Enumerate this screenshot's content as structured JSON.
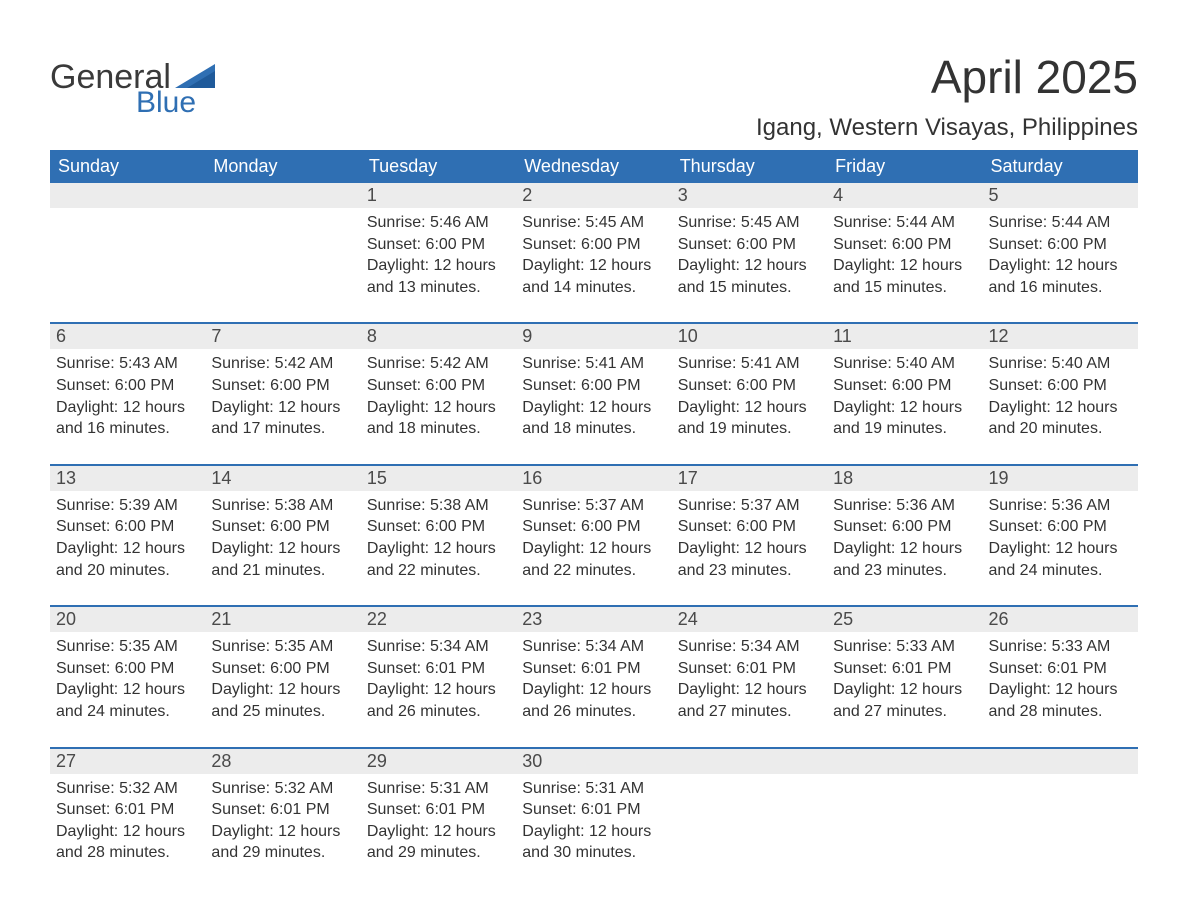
{
  "brand": {
    "word1": "General",
    "word2": "Blue",
    "accent_color": "#2f6fb3"
  },
  "header": {
    "title": "April 2025",
    "location": "Igang, Western Visayas, Philippines"
  },
  "calendar": {
    "type": "table",
    "header_bg": "#2f6fb3",
    "header_text_color": "#ffffff",
    "row_border_color": "#2f6fb3",
    "daynum_bg": "#ececec",
    "text_color": "#333333",
    "font_size_body": 16,
    "font_size_header": 18,
    "columns": [
      "Sunday",
      "Monday",
      "Tuesday",
      "Wednesday",
      "Thursday",
      "Friday",
      "Saturday"
    ],
    "weeks": [
      [
        null,
        null,
        {
          "n": "1",
          "sr": "5:46 AM",
          "ss": "6:00 PM",
          "dl": "12 hours and 13 minutes."
        },
        {
          "n": "2",
          "sr": "5:45 AM",
          "ss": "6:00 PM",
          "dl": "12 hours and 14 minutes."
        },
        {
          "n": "3",
          "sr": "5:45 AM",
          "ss": "6:00 PM",
          "dl": "12 hours and 15 minutes."
        },
        {
          "n": "4",
          "sr": "5:44 AM",
          "ss": "6:00 PM",
          "dl": "12 hours and 15 minutes."
        },
        {
          "n": "5",
          "sr": "5:44 AM",
          "ss": "6:00 PM",
          "dl": "12 hours and 16 minutes."
        }
      ],
      [
        {
          "n": "6",
          "sr": "5:43 AM",
          "ss": "6:00 PM",
          "dl": "12 hours and 16 minutes."
        },
        {
          "n": "7",
          "sr": "5:42 AM",
          "ss": "6:00 PM",
          "dl": "12 hours and 17 minutes."
        },
        {
          "n": "8",
          "sr": "5:42 AM",
          "ss": "6:00 PM",
          "dl": "12 hours and 18 minutes."
        },
        {
          "n": "9",
          "sr": "5:41 AM",
          "ss": "6:00 PM",
          "dl": "12 hours and 18 minutes."
        },
        {
          "n": "10",
          "sr": "5:41 AM",
          "ss": "6:00 PM",
          "dl": "12 hours and 19 minutes."
        },
        {
          "n": "11",
          "sr": "5:40 AM",
          "ss": "6:00 PM",
          "dl": "12 hours and 19 minutes."
        },
        {
          "n": "12",
          "sr": "5:40 AM",
          "ss": "6:00 PM",
          "dl": "12 hours and 20 minutes."
        }
      ],
      [
        {
          "n": "13",
          "sr": "5:39 AM",
          "ss": "6:00 PM",
          "dl": "12 hours and 20 minutes."
        },
        {
          "n": "14",
          "sr": "5:38 AM",
          "ss": "6:00 PM",
          "dl": "12 hours and 21 minutes."
        },
        {
          "n": "15",
          "sr": "5:38 AM",
          "ss": "6:00 PM",
          "dl": "12 hours and 22 minutes."
        },
        {
          "n": "16",
          "sr": "5:37 AM",
          "ss": "6:00 PM",
          "dl": "12 hours and 22 minutes."
        },
        {
          "n": "17",
          "sr": "5:37 AM",
          "ss": "6:00 PM",
          "dl": "12 hours and 23 minutes."
        },
        {
          "n": "18",
          "sr": "5:36 AM",
          "ss": "6:00 PM",
          "dl": "12 hours and 23 minutes."
        },
        {
          "n": "19",
          "sr": "5:36 AM",
          "ss": "6:00 PM",
          "dl": "12 hours and 24 minutes."
        }
      ],
      [
        {
          "n": "20",
          "sr": "5:35 AM",
          "ss": "6:00 PM",
          "dl": "12 hours and 24 minutes."
        },
        {
          "n": "21",
          "sr": "5:35 AM",
          "ss": "6:00 PM",
          "dl": "12 hours and 25 minutes."
        },
        {
          "n": "22",
          "sr": "5:34 AM",
          "ss": "6:01 PM",
          "dl": "12 hours and 26 minutes."
        },
        {
          "n": "23",
          "sr": "5:34 AM",
          "ss": "6:01 PM",
          "dl": "12 hours and 26 minutes."
        },
        {
          "n": "24",
          "sr": "5:34 AM",
          "ss": "6:01 PM",
          "dl": "12 hours and 27 minutes."
        },
        {
          "n": "25",
          "sr": "5:33 AM",
          "ss": "6:01 PM",
          "dl": "12 hours and 27 minutes."
        },
        {
          "n": "26",
          "sr": "5:33 AM",
          "ss": "6:01 PM",
          "dl": "12 hours and 28 minutes."
        }
      ],
      [
        {
          "n": "27",
          "sr": "5:32 AM",
          "ss": "6:01 PM",
          "dl": "12 hours and 28 minutes."
        },
        {
          "n": "28",
          "sr": "5:32 AM",
          "ss": "6:01 PM",
          "dl": "12 hours and 29 minutes."
        },
        {
          "n": "29",
          "sr": "5:31 AM",
          "ss": "6:01 PM",
          "dl": "12 hours and 29 minutes."
        },
        {
          "n": "30",
          "sr": "5:31 AM",
          "ss": "6:01 PM",
          "dl": "12 hours and 30 minutes."
        },
        null,
        null,
        null
      ]
    ]
  },
  "labels": {
    "sunrise": "Sunrise: ",
    "sunset": "Sunset: ",
    "daylight": "Daylight: "
  }
}
